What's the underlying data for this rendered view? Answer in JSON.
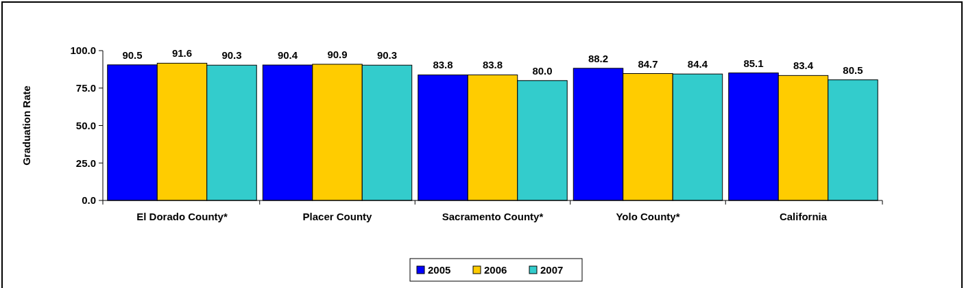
{
  "chart_data": {
    "type": "bar",
    "ylabel": "Graduation Rate",
    "categories": [
      "El Dorado County*",
      "Placer County",
      "Sacramento County*",
      "Yolo County*",
      "California"
    ],
    "series": [
      {
        "name": "2005",
        "color": "#0000ff",
        "values": [
          90.5,
          90.4,
          83.8,
          88.2,
          85.1
        ],
        "value_labels": [
          "90.5",
          "90.4",
          "83.8",
          "88.2",
          "85.1"
        ]
      },
      {
        "name": "2006",
        "color": "#ffcc00",
        "values": [
          91.6,
          90.9,
          83.8,
          84.7,
          83.4
        ],
        "value_labels": [
          "91.6",
          "90.9",
          "83.8",
          "84.7",
          "83.4"
        ]
      },
      {
        "name": "2007",
        "color": "#33cccc",
        "values": [
          90.3,
          90.3,
          80.0,
          84.4,
          80.5
        ],
        "value_labels": [
          "90.3",
          "90.3",
          "80.0",
          "84.4",
          "80.5"
        ]
      }
    ],
    "ylim": [
      0,
      100
    ],
    "yticks": [
      {
        "value": 0,
        "label": "0.0"
      },
      {
        "value": 25,
        "label": "25.0"
      },
      {
        "value": 50,
        "label": "50.0"
      },
      {
        "value": 75,
        "label": "75.0"
      },
      {
        "value": 100,
        "label": "100.0"
      }
    ],
    "grid": false,
    "legend": "bottom"
  }
}
